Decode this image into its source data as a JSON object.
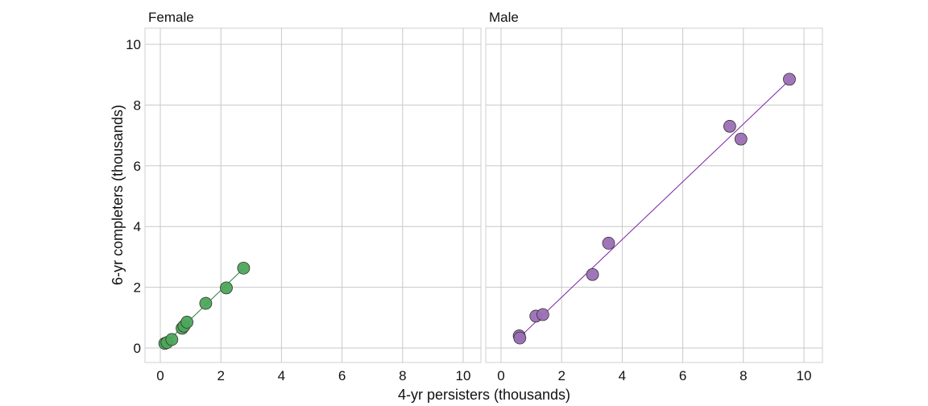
{
  "chart_data": {
    "type": "scatter",
    "xlabel": "4-yr persisters (thousands)",
    "ylabel": "6-yr completers (thousands)",
    "xlim": [
      0,
      10
    ],
    "ylim": [
      0,
      10
    ],
    "xticks": [
      0,
      2,
      4,
      6,
      8,
      10
    ],
    "yticks": [
      0,
      2,
      4,
      6,
      8,
      10
    ],
    "grid": true,
    "facets": [
      {
        "name": "Female",
        "color": "#4da65a",
        "line_color": "#2e7d3a",
        "points": [
          {
            "x": 0.15,
            "y": 0.15
          },
          {
            "x": 0.22,
            "y": 0.18
          },
          {
            "x": 0.38,
            "y": 0.28
          },
          {
            "x": 0.72,
            "y": 0.65
          },
          {
            "x": 0.78,
            "y": 0.72
          },
          {
            "x": 0.88,
            "y": 0.85
          },
          {
            "x": 1.5,
            "y": 1.47
          },
          {
            "x": 2.18,
            "y": 1.98
          },
          {
            "x": 2.75,
            "y": 2.63
          }
        ],
        "fit": [
          [
            0.15,
            0.13
          ],
          [
            2.75,
            2.62
          ]
        ]
      },
      {
        "name": "Male",
        "color": "#9b6fb5",
        "line_color": "#7b1fa2",
        "points": [
          {
            "x": 0.6,
            "y": 0.4
          },
          {
            "x": 0.62,
            "y": 0.33
          },
          {
            "x": 1.15,
            "y": 1.05
          },
          {
            "x": 1.38,
            "y": 1.1
          },
          {
            "x": 3.02,
            "y": 2.42
          },
          {
            "x": 3.55,
            "y": 3.45
          },
          {
            "x": 7.55,
            "y": 7.3
          },
          {
            "x": 7.92,
            "y": 6.88
          },
          {
            "x": 9.52,
            "y": 8.85
          }
        ],
        "fit": [
          [
            0.6,
            0.34
          ],
          [
            9.52,
            8.82
          ]
        ]
      }
    ]
  }
}
